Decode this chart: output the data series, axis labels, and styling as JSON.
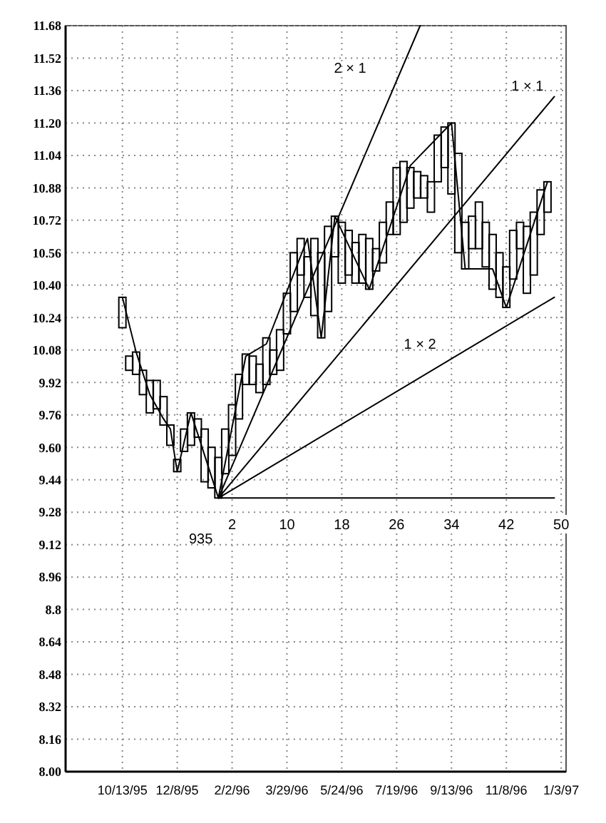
{
  "chart_data": {
    "type": "bar",
    "xlim": [
      "1995-08-16",
      "1997-01-08"
    ],
    "xticks": [
      {
        "value": "1995-10-13",
        "label": "10/13/95"
      },
      {
        "value": "1995-12-08",
        "label": "12/8/95"
      },
      {
        "value": "1996-02-02",
        "label": "2/2/96"
      },
      {
        "value": "1996-03-29",
        "label": "3/29/96"
      },
      {
        "value": "1996-05-24",
        "label": "5/24/96"
      },
      {
        "value": "1996-07-19",
        "label": "7/19/96"
      },
      {
        "value": "1996-09-13",
        "label": "9/13/96"
      },
      {
        "value": "1996-11-08",
        "label": "11/8/96"
      },
      {
        "value": "1997-01-03",
        "label": "1/3/97"
      }
    ],
    "x2lim": [
      -22.29,
      50.71
    ],
    "x2ticks": [
      2,
      10,
      18,
      26,
      34,
      42,
      50
    ],
    "ylim": [
      8.0,
      11.68
    ],
    "yticks": [
      {
        "value": 8.0,
        "label": "8.00"
      },
      8.16,
      8.32,
      8.48,
      8.64,
      8.8,
      8.96,
      9.12,
      9.28,
      9.44,
      {
        "value": 9.6,
        "label": "9.60"
      },
      9.76,
      9.92,
      10.08,
      10.24,
      {
        "value": 10.4,
        "label": "10.40"
      },
      10.56,
      10.72,
      10.88,
      11.04,
      {
        "value": 11.2,
        "label": "11.20"
      },
      11.36,
      11.52,
      11.68
    ],
    "grid": true,
    "annotations": [
      {
        "text": "935",
        "x": "1996-01-19",
        "y": 9.35
      }
    ],
    "series": [
      {
        "color": "#000000",
        "x": [
          "1995-10-13",
          "1995-10-20",
          "1995-10-27",
          "1995-11-03",
          "1995-11-10",
          "1995-11-17",
          "1995-11-24",
          "1995-12-01",
          "1995-12-08",
          "1995-12-15",
          "1995-12-22",
          "1995-12-29",
          "1996-01-05",
          "1996-01-12",
          "1996-01-19",
          "1996-01-26",
          "1996-02-02",
          "1996-02-09",
          "1996-02-16",
          "1996-02-23",
          "1996-03-01",
          "1996-03-08",
          "1996-03-15",
          "1996-03-22",
          "1996-03-29",
          "1996-04-05",
          "1996-04-12",
          "1996-04-19",
          "1996-04-26",
          "1996-05-03",
          "1996-05-10",
          "1996-05-17",
          "1996-05-24",
          "1996-05-31",
          "1996-06-07",
          "1996-06-14",
          "1996-06-21",
          "1996-06-28",
          "1996-07-05",
          "1996-07-12",
          "1996-07-19",
          "1996-07-26",
          "1996-08-02",
          "1996-08-09",
          "1996-08-16",
          "1996-08-23",
          "1996-08-30",
          "1996-09-06",
          "1996-09-13",
          "1996-09-20",
          "1996-09-27",
          "1996-10-04",
          "1996-10-11",
          "1996-10-18",
          "1996-10-25",
          "1996-11-01",
          "1996-11-08",
          "1996-11-15",
          "1996-11-22",
          "1996-11-29",
          "1996-12-06",
          "1996-12-13",
          "1996-12-20"
        ],
        "base": [
          10.19,
          9.98,
          9.96,
          9.86,
          9.77,
          9.79,
          9.71,
          9.61,
          9.48,
          9.58,
          9.61,
          9.65,
          9.43,
          9.4,
          9.35,
          9.47,
          9.56,
          9.74,
          9.91,
          9.91,
          9.87,
          9.91,
          9.96,
          9.98,
          10.16,
          10.27,
          10.45,
          10.34,
          10.25,
          10.14,
          10.27,
          10.54,
          10.41,
          10.45,
          10.41,
          10.41,
          10.38,
          10.47,
          10.51,
          10.65,
          10.65,
          10.71,
          10.78,
          10.83,
          10.83,
          10.76,
          10.91,
          10.98,
          10.85,
          10.56,
          10.48,
          10.58,
          10.58,
          10.49,
          10.38,
          10.34,
          10.29,
          10.43,
          10.58,
          10.36,
          10.45,
          10.65,
          10.76
        ],
        "values": [
          0.15,
          0.07,
          0.11,
          0.12,
          0.16,
          0.14,
          0.14,
          0.1,
          0.06,
          0.11,
          0.16,
          0.09,
          0.26,
          0.2,
          0.2,
          0.22,
          0.25,
          0.22,
          0.15,
          0.14,
          0.14,
          0.23,
          0.12,
          0.2,
          0.2,
          0.29,
          0.18,
          0.2,
          0.38,
          0.42,
          0.42,
          0.2,
          0.3,
          0.22,
          0.2,
          0.24,
          0.25,
          0.11,
          0.2,
          0.16,
          0.33,
          0.3,
          0.2,
          0.13,
          0.11,
          0.15,
          0.23,
          0.2,
          0.35,
          0.49,
          0.23,
          0.16,
          0.23,
          0.22,
          0.27,
          0.22,
          0.2,
          0.24,
          0.13,
          0.33,
          0.31,
          0.22,
          0.15
        ]
      },
      {
        "type": "line",
        "color": "#000000",
        "x": [
          "1995-10-13",
          "1995-10-27",
          "1995-11-10",
          "1995-11-24",
          "1995-12-01",
          "1995-12-08",
          "1995-12-22",
          "1996-01-19",
          "1996-02-16",
          "1996-03-08",
          "1996-04-19",
          "1996-05-03",
          "1996-05-17",
          "1996-06-21",
          "1996-08-02",
          "1996-09-13",
          "1996-09-27",
          "1996-10-25",
          "1996-11-08",
          "1996-12-20"
        ],
        "values": [
          10.34,
          10.07,
          9.86,
          9.74,
          9.69,
          9.48,
          9.77,
          9.35,
          10.05,
          10.11,
          10.63,
          10.14,
          10.74,
          10.38,
          10.99,
          11.2,
          10.48,
          10.48,
          10.29,
          10.91
        ]
      },
      {
        "type": "line",
        "color": "#000000",
        "name": "2 × 1",
        "x": [
          "1996-01-19",
          "1996-08-12"
        ],
        "values": [
          9.35,
          11.68
        ]
      },
      {
        "type": "line",
        "color": "#000000",
        "name": "1 × 1",
        "x": [
          "1996-01-19",
          "1996-12-27"
        ],
        "values": [
          9.35,
          11.33
        ]
      },
      {
        "type": "line",
        "color": "#000000",
        "name": "1 × 2",
        "x": [
          "1996-01-19",
          "1996-12-27"
        ],
        "values": [
          9.35,
          10.34
        ]
      },
      {
        "type": "line",
        "color": "#000000",
        "x": [
          "1996-01-19",
          "1996-12-27"
        ],
        "values": [
          9.35,
          9.35
        ]
      }
    ]
  }
}
